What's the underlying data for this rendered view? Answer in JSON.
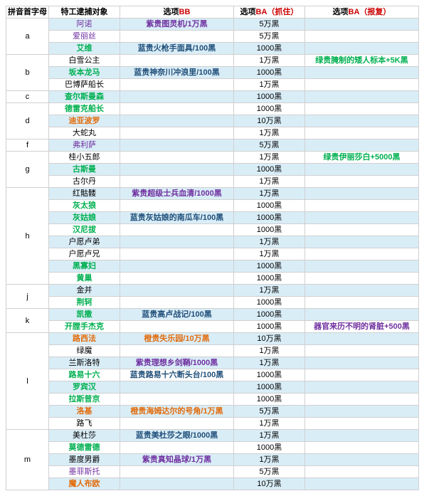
{
  "headers": {
    "col1": "拼音首字母",
    "col2": "特工逮捕对象",
    "col3_prefix": "选项",
    "col3_suffix": "BB",
    "col4_prefix": "选项",
    "col4_suffix": "BA（抓住）",
    "col5_prefix": "选项",
    "col5_suffix": "BA（报复）"
  },
  "colors": {
    "header_bb": "#cc0000",
    "header_ba": "#cc0000",
    "stripe_even": "#d9edf7",
    "stripe_odd": "#ffffff",
    "border": "#d0d0d0"
  },
  "groups": [
    {
      "letter": "a",
      "rows": [
        {
          "name": "阿诺",
          "ncolor": "purple",
          "bb": "紫贵图灵机/1万黑",
          "bbc": "bbp",
          "ba1": "5万黑",
          "ba2": ""
        },
        {
          "name": "爱丽丝",
          "ncolor": "purple",
          "bb": "",
          "ba1": "5万黑",
          "ba2": ""
        },
        {
          "name": "艾维",
          "ncolor": "green",
          "bb": "蓝贵火枪手面具/100黑",
          "bbc": "bb",
          "ba1": "1000黑",
          "ba2": ""
        }
      ]
    },
    {
      "letter": "b",
      "rows": [
        {
          "name": "白雪公主",
          "ncolor": "black",
          "bb": "",
          "ba1": "1万黑",
          "ba2": "绿贵腌制的矮人标本+5K黑",
          "ba2c": "ba2"
        },
        {
          "name": "坂本龙马",
          "ncolor": "green",
          "bb": "蓝贵神奈川冲浪里/100黑",
          "bbc": "bb",
          "ba1": "1000黑",
          "ba2": ""
        },
        {
          "name": "巴博萨船长",
          "ncolor": "black",
          "bb": "",
          "ba1": "1万黑",
          "ba2": ""
        }
      ]
    },
    {
      "letter": "c",
      "rows": [
        {
          "name": "查尔斯曼森",
          "ncolor": "green",
          "bb": "",
          "ba1": "1000黑",
          "ba2": ""
        }
      ]
    },
    {
      "letter": "d",
      "rows": [
        {
          "name": "德雷克船长",
          "ncolor": "green",
          "bb": "",
          "ba1": "1000黑",
          "ba2": ""
        },
        {
          "name": "迪亚波罗",
          "ncolor": "orange",
          "bb": "",
          "ba1": "10万黑",
          "ba2": ""
        },
        {
          "name": "大蛇丸",
          "ncolor": "black",
          "bb": "",
          "ba1": "1万黑",
          "ba2": ""
        }
      ]
    },
    {
      "letter": "f",
      "rows": [
        {
          "name": "弗利萨",
          "ncolor": "purple",
          "bb": "",
          "ba1": "5万黑",
          "ba2": ""
        }
      ]
    },
    {
      "letter": "g",
      "rows": [
        {
          "name": "桂小五郎",
          "ncolor": "black",
          "bb": "",
          "ba1": "1万黑",
          "ba2": "绿贵伊丽莎白+5000黑",
          "ba2c": "ba2"
        },
        {
          "name": "古斯曼",
          "ncolor": "green",
          "bb": "",
          "ba1": "1000黑",
          "ba2": ""
        },
        {
          "name": "古尔丹",
          "ncolor": "black",
          "bb": "",
          "ba1": "1万黑",
          "ba2": ""
        }
      ]
    },
    {
      "letter": "h",
      "rows": [
        {
          "name": "红骷髅",
          "ncolor": "black",
          "bb": "紫贵超级士兵血清/1000黑",
          "bbc": "bbp",
          "ba1": "1万黑",
          "ba2": ""
        },
        {
          "name": "灰太狼",
          "ncolor": "green",
          "bb": "",
          "ba1": "1000黑",
          "ba2": ""
        },
        {
          "name": "灰姑娘",
          "ncolor": "green",
          "bb": "蓝贵灰姑娘的南瓜车/100黑",
          "bbc": "bb",
          "ba1": "1000黑",
          "ba2": ""
        },
        {
          "name": "汉尼拔",
          "ncolor": "green",
          "bb": "",
          "ba1": "1000黑",
          "ba2": ""
        },
        {
          "name": "户愿卢弟",
          "ncolor": "black",
          "bb": "",
          "ba1": "1万黑",
          "ba2": ""
        },
        {
          "name": "户愿卢兄",
          "ncolor": "black",
          "bb": "",
          "ba1": "1万黑",
          "ba2": ""
        },
        {
          "name": "黑寡妇",
          "ncolor": "green",
          "bb": "",
          "ba1": "1000黑",
          "ba2": ""
        },
        {
          "name": "黄巢",
          "ncolor": "green",
          "bb": "",
          "ba1": "1000黑",
          "ba2": ""
        }
      ]
    },
    {
      "letter": "j",
      "rows": [
        {
          "name": "金并",
          "ncolor": "black",
          "bb": "",
          "ba1": "1万黑",
          "ba2": ""
        },
        {
          "name": "荆轲",
          "ncolor": "green",
          "bb": "",
          "ba1": "1000黑",
          "ba2": ""
        }
      ]
    },
    {
      "letter": "k",
      "rows": [
        {
          "name": "凯撒",
          "ncolor": "green",
          "bb": "蓝贵高卢战记/100黑",
          "bbc": "bb",
          "ba1": "1000黑",
          "ba2": ""
        },
        {
          "name": "开膛手杰克",
          "ncolor": "green",
          "bb": "",
          "ba1": "1000黑",
          "ba2": "器官来历不明的肾脏+500黑",
          "ba2c": "ba2p"
        }
      ]
    },
    {
      "letter": "l",
      "rows": [
        {
          "name": "路西法",
          "ncolor": "orange",
          "bb": "橙贵失乐园/10万黑",
          "bbc": "bbo",
          "ba1": "10万黑",
          "ba2": ""
        },
        {
          "name": "绿魔",
          "ncolor": "black",
          "bb": "",
          "ba1": "1万黑",
          "ba2": ""
        },
        {
          "name": "兰斯洛特",
          "ncolor": "black",
          "bb": "紫贵理想乡剑鞘/1000黑",
          "bbc": "bbp",
          "ba1": "1万黑",
          "ba2": ""
        },
        {
          "name": "路易十六",
          "ncolor": "green",
          "bb": "蓝贵路易十六断头台/100黑",
          "bbc": "bb",
          "ba1": "1000黑",
          "ba2": ""
        },
        {
          "name": "罗宾汉",
          "ncolor": "green",
          "bb": "",
          "ba1": "1000黑",
          "ba2": ""
        },
        {
          "name": "拉斯普京",
          "ncolor": "green",
          "bb": "",
          "ba1": "1000黑",
          "ba2": ""
        },
        {
          "name": "洛基",
          "ncolor": "orange",
          "bb": "橙贵海姆达尔的号角/1万黑",
          "bbc": "bbo",
          "ba1": "5万黑",
          "ba2": ""
        },
        {
          "name": "路飞",
          "ncolor": "black",
          "bb": "",
          "ba1": "1万黑",
          "ba2": ""
        }
      ]
    },
    {
      "letter": "m",
      "rows": [
        {
          "name": "美杜莎",
          "ncolor": "black",
          "bb": "蓝贵美杜莎之眼/1000黑",
          "bbc": "bb",
          "ba1": "1万黑",
          "ba2": ""
        },
        {
          "name": "莫德雷德",
          "ncolor": "green",
          "bb": "",
          "ba1": "1000黑",
          "ba2": ""
        },
        {
          "name": "墨度男爵",
          "ncolor": "black",
          "bb": "紫贵真知晶球/1万黑",
          "bbc": "bbp",
          "ba1": "1万黑",
          "ba2": ""
        },
        {
          "name": "墨菲斯托",
          "ncolor": "purple",
          "bb": "",
          "ba1": "5万黑",
          "ba2": ""
        },
        {
          "name": "魔人布欧",
          "ncolor": "orange",
          "bb": "",
          "ba1": "10万黑",
          "ba2": ""
        }
      ]
    }
  ]
}
